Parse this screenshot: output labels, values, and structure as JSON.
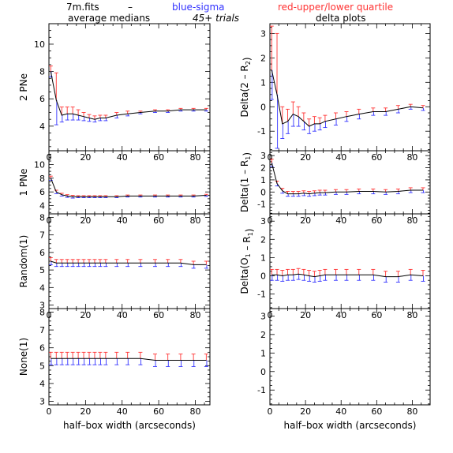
{
  "header": {
    "file": "7m.fits",
    "dash": "–",
    "blue_label": "blue-sigma",
    "red_label": "red-upper/lower quartile",
    "trials": "45+ trials",
    "left_title": "average medians",
    "right_title": "delta plots"
  },
  "colors": {
    "line": "#000000",
    "upper": "#ff3333",
    "lower": "#3333ff",
    "axis": "#000000"
  },
  "chart_data": [
    {
      "type": "line",
      "ylabel": "2 PNe",
      "xlabel": "",
      "xlim": [
        0,
        88
      ],
      "ylim": [
        2.2,
        11.5
      ],
      "xticks": [
        "0",
        "20",
        "40",
        "60",
        "80"
      ],
      "yticks": [
        "4",
        "6",
        "8",
        "10"
      ],
      "x": [
        1,
        4,
        7,
        10,
        13,
        16,
        19,
        22,
        25,
        28,
        31,
        37,
        43,
        50,
        58,
        65,
        72,
        79,
        86
      ],
      "y": [
        8.0,
        5.9,
        4.8,
        4.9,
        4.9,
        4.8,
        4.7,
        4.6,
        4.5,
        4.6,
        4.6,
        4.8,
        4.9,
        5.0,
        5.1,
        5.1,
        5.2,
        5.2,
        5.2
      ],
      "upper": [
        0.4,
        2.0,
        0.6,
        0.5,
        0.5,
        0.4,
        0.3,
        0.25,
        0.25,
        0.2,
        0.2,
        0.2,
        0.2,
        0.1,
        0.1,
        0.1,
        0.1,
        0.1,
        0.1
      ],
      "lower": [
        0.4,
        1.8,
        0.5,
        0.45,
        0.45,
        0.35,
        0.3,
        0.25,
        0.2,
        0.2,
        0.2,
        0.2,
        0.15,
        0.1,
        0.1,
        0.1,
        0.1,
        0.1,
        0.1
      ]
    },
    {
      "type": "line",
      "ylabel": "Delta(2 – R2)",
      "xlabel": "",
      "xlim": [
        0,
        90
      ],
      "ylim": [
        -1.8,
        3.4
      ],
      "xticks": [
        "0",
        "20",
        "40",
        "60",
        "80"
      ],
      "yticks": [
        "-1",
        "0",
        "1",
        "2",
        "3"
      ],
      "x": [
        1,
        4,
        7,
        10,
        13,
        16,
        19,
        22,
        25,
        28,
        31,
        37,
        43,
        50,
        58,
        65,
        72,
        79,
        86
      ],
      "y": [
        1.5,
        0.5,
        -0.7,
        -0.6,
        -0.3,
        -0.4,
        -0.6,
        -0.8,
        -0.7,
        -0.7,
        -0.6,
        -0.5,
        -0.4,
        -0.3,
        -0.2,
        -0.2,
        -0.1,
        0.0,
        -0.05
      ],
      "upper": [
        1.8,
        2.5,
        0.7,
        0.5,
        0.5,
        0.4,
        0.35,
        0.3,
        0.3,
        0.25,
        0.25,
        0.25,
        0.2,
        0.2,
        0.15,
        0.15,
        0.15,
        0.1,
        0.1
      ],
      "lower": [
        1.2,
        2.2,
        0.6,
        0.5,
        0.5,
        0.4,
        0.35,
        0.3,
        0.3,
        0.25,
        0.25,
        0.25,
        0.2,
        0.2,
        0.15,
        0.15,
        0.15,
        0.1,
        0.1
      ]
    },
    {
      "type": "line",
      "ylabel": "1 PNe",
      "xlabel": "",
      "xlim": [
        0,
        88
      ],
      "ylim": [
        2.8,
        12.0
      ],
      "xticks": [
        "0",
        "20",
        "40",
        "60",
        "80"
      ],
      "yticks": [
        "4",
        "6",
        "8",
        "10"
      ],
      "x": [
        1,
        4,
        7,
        10,
        13,
        16,
        19,
        22,
        25,
        28,
        31,
        37,
        43,
        50,
        58,
        65,
        72,
        79,
        86
      ],
      "y": [
        8.0,
        6.0,
        5.6,
        5.4,
        5.3,
        5.3,
        5.3,
        5.3,
        5.3,
        5.3,
        5.3,
        5.3,
        5.4,
        5.4,
        5.4,
        5.4,
        5.4,
        5.4,
        5.5
      ],
      "upper": [
        0.3,
        0.25,
        0.2,
        0.2,
        0.2,
        0.15,
        0.15,
        0.15,
        0.15,
        0.15,
        0.15,
        0.15,
        0.15,
        0.15,
        0.15,
        0.15,
        0.15,
        0.15,
        0.15
      ],
      "lower": [
        0.3,
        0.25,
        0.2,
        0.2,
        0.2,
        0.15,
        0.15,
        0.15,
        0.15,
        0.15,
        0.15,
        0.15,
        0.15,
        0.15,
        0.15,
        0.15,
        0.15,
        0.15,
        0.15
      ]
    },
    {
      "type": "line",
      "ylabel": "Delta(1 – R1)",
      "xlabel": "",
      "xlim": [
        0,
        90
      ],
      "ylim": [
        -1.8,
        3.4
      ],
      "xticks": [
        "0",
        "20",
        "40",
        "60",
        "80"
      ],
      "yticks": [
        "-1",
        "0",
        "1",
        "2",
        "3"
      ],
      "x": [
        1,
        4,
        7,
        10,
        13,
        16,
        19,
        22,
        25,
        28,
        31,
        37,
        43,
        50,
        58,
        65,
        72,
        79,
        86
      ],
      "y": [
        2.4,
        0.7,
        0.1,
        -0.15,
        -0.15,
        -0.15,
        -0.1,
        -0.15,
        -0.1,
        -0.05,
        -0.05,
        0.0,
        0.0,
        0.05,
        0.05,
        0.0,
        0.05,
        0.15,
        0.15
      ],
      "upper": [
        0.3,
        0.2,
        0.2,
        0.2,
        0.2,
        0.2,
        0.2,
        0.2,
        0.2,
        0.2,
        0.2,
        0.2,
        0.2,
        0.2,
        0.2,
        0.2,
        0.2,
        0.2,
        0.2
      ],
      "lower": [
        0.3,
        0.2,
        0.2,
        0.2,
        0.2,
        0.2,
        0.2,
        0.2,
        0.2,
        0.2,
        0.2,
        0.2,
        0.2,
        0.2,
        0.2,
        0.2,
        0.2,
        0.2,
        0.2
      ]
    },
    {
      "type": "line",
      "ylabel": "Random(1)",
      "xlabel": "",
      "xlim": [
        0,
        88
      ],
      "ylim": [
        2.8,
        8.2
      ],
      "xticks": [
        "0",
        "20",
        "40",
        "60",
        "80"
      ],
      "yticks": [
        "3",
        "4",
        "5",
        "6",
        "7",
        "8"
      ],
      "x": [
        1,
        4,
        7,
        10,
        13,
        16,
        19,
        22,
        25,
        28,
        31,
        37,
        43,
        50,
        58,
        65,
        72,
        79,
        86
      ],
      "y": [
        5.5,
        5.4,
        5.4,
        5.4,
        5.4,
        5.4,
        5.4,
        5.4,
        5.4,
        5.4,
        5.4,
        5.4,
        5.4,
        5.4,
        5.4,
        5.4,
        5.4,
        5.3,
        5.3
      ],
      "upper": [
        0.2,
        0.2,
        0.2,
        0.2,
        0.2,
        0.2,
        0.2,
        0.2,
        0.2,
        0.2,
        0.2,
        0.2,
        0.2,
        0.2,
        0.2,
        0.2,
        0.2,
        0.2,
        0.2
      ],
      "lower": [
        0.2,
        0.2,
        0.2,
        0.2,
        0.2,
        0.2,
        0.2,
        0.2,
        0.2,
        0.2,
        0.2,
        0.2,
        0.2,
        0.2,
        0.2,
        0.2,
        0.2,
        0.2,
        0.2
      ]
    },
    {
      "type": "line",
      "ylabel": "Delta(O1 – R1)",
      "xlabel": "",
      "xlim": [
        0,
        90
      ],
      "ylim": [
        -1.8,
        3.4
      ],
      "xticks": [
        "0",
        "20",
        "40",
        "60",
        "80"
      ],
      "yticks": [
        "-1",
        "0",
        "1",
        "2",
        "3"
      ],
      "x": [
        1,
        4,
        7,
        10,
        13,
        16,
        19,
        22,
        25,
        28,
        31,
        37,
        43,
        50,
        58,
        65,
        72,
        79,
        86
      ],
      "y": [
        0.05,
        0.05,
        0.0,
        0.05,
        0.05,
        0.1,
        0.05,
        0.0,
        -0.05,
        0.0,
        0.05,
        0.05,
        0.05,
        0.05,
        0.05,
        -0.05,
        -0.05,
        0.05,
        0.0
      ],
      "upper": [
        0.3,
        0.3,
        0.3,
        0.3,
        0.3,
        0.3,
        0.3,
        0.3,
        0.3,
        0.3,
        0.3,
        0.3,
        0.3,
        0.3,
        0.3,
        0.3,
        0.3,
        0.3,
        0.3
      ],
      "lower": [
        0.3,
        0.3,
        0.3,
        0.3,
        0.3,
        0.3,
        0.3,
        0.3,
        0.3,
        0.3,
        0.3,
        0.3,
        0.3,
        0.3,
        0.3,
        0.3,
        0.3,
        0.3,
        0.3
      ]
    },
    {
      "type": "line",
      "ylabel": "None(1)",
      "xlabel": "half–box width (arcseconds)",
      "xlim": [
        0,
        88
      ],
      "ylim": [
        2.8,
        8.2
      ],
      "xticks": [
        "0",
        "20",
        "40",
        "60",
        "80"
      ],
      "yticks": [
        "3",
        "4",
        "5",
        "6",
        "7",
        "8"
      ],
      "x": [
        1,
        4,
        7,
        10,
        13,
        16,
        19,
        22,
        25,
        28,
        31,
        37,
        43,
        50,
        58,
        65,
        72,
        79,
        86
      ],
      "y": [
        5.4,
        5.4,
        5.4,
        5.4,
        5.4,
        5.4,
        5.4,
        5.4,
        5.4,
        5.4,
        5.4,
        5.4,
        5.4,
        5.4,
        5.3,
        5.3,
        5.3,
        5.3,
        5.3
      ],
      "upper": [
        0.35,
        0.35,
        0.35,
        0.35,
        0.35,
        0.35,
        0.35,
        0.35,
        0.35,
        0.35,
        0.35,
        0.35,
        0.35,
        0.35,
        0.35,
        0.35,
        0.35,
        0.35,
        0.35
      ],
      "lower": [
        0.35,
        0.35,
        0.35,
        0.35,
        0.35,
        0.35,
        0.35,
        0.35,
        0.35,
        0.35,
        0.35,
        0.35,
        0.35,
        0.35,
        0.35,
        0.35,
        0.35,
        0.35,
        0.35
      ]
    },
    {
      "type": "line",
      "ylabel": "",
      "xlabel": "half–box width (arcseconds)",
      "xlim": [
        0,
        90
      ],
      "ylim": [
        -1.8,
        3.4
      ],
      "xticks": [
        "0",
        "20",
        "40",
        "60",
        "80"
      ],
      "yticks": [
        "-1",
        "0",
        "1",
        "2",
        "3"
      ],
      "x": [],
      "y": [],
      "upper": [],
      "lower": []
    }
  ]
}
